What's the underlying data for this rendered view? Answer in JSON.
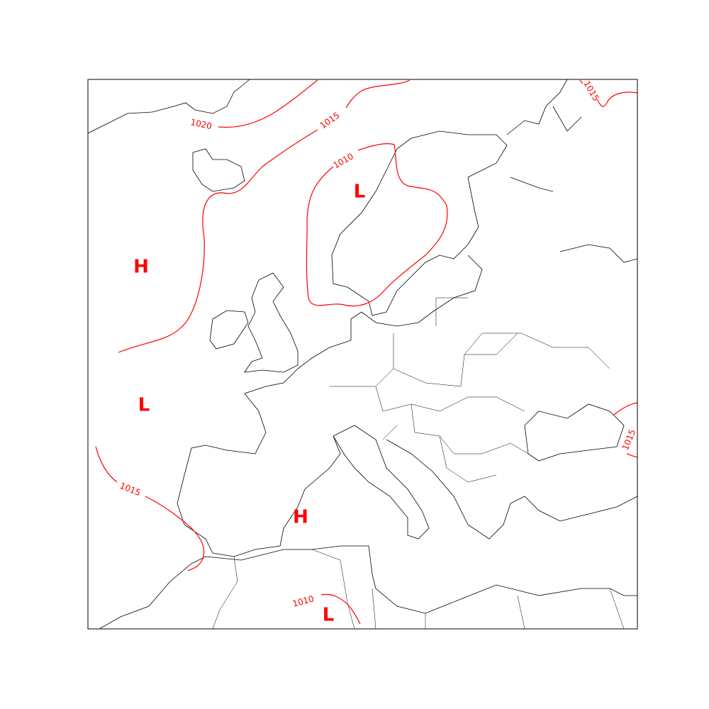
{
  "map": {
    "type": "surface pressure isobar map",
    "region": "Europe",
    "isobar_color": "#ff0000",
    "coastline_color": "#000000",
    "isobar_labels": [
      {
        "id": "iso-1020",
        "value": "1020"
      },
      {
        "id": "iso-1015-north",
        "value": "1015"
      },
      {
        "id": "iso-1010-scandinavia",
        "value": "1010"
      },
      {
        "id": "iso-1015-northeast",
        "value": "1015"
      },
      {
        "id": "iso-1015-east",
        "value": "1015"
      },
      {
        "id": "iso-1015-southwest",
        "value": "1015"
      },
      {
        "id": "iso-1010-south",
        "value": "1010"
      }
    ],
    "pressure_centers": [
      {
        "id": "high-atlantic",
        "label": "H"
      },
      {
        "id": "low-scandinavia",
        "label": "L"
      },
      {
        "id": "low-atlantic",
        "label": "L"
      },
      {
        "id": "high-mediterranean",
        "label": "H"
      },
      {
        "id": "low-north-africa",
        "label": "L"
      }
    ]
  }
}
